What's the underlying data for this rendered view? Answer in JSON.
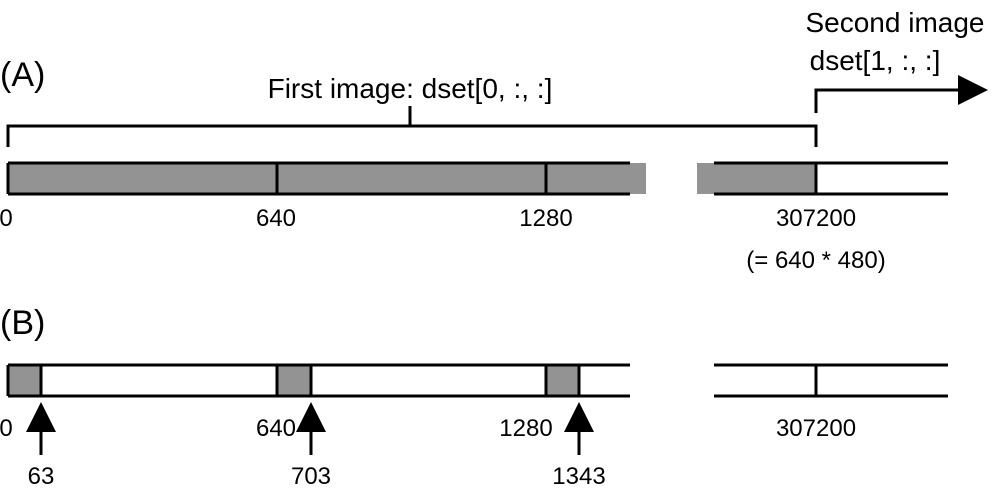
{
  "colors": {
    "fill": "#939393",
    "line": "#000000",
    "background": "#ffffff"
  },
  "panel_a": {
    "label": "(A)",
    "first_image_label": "First image: dset[0, :, :]",
    "second_image_label_line1": "Second image",
    "second_image_label_line2": "dset[1, :, :]",
    "ticks": {
      "t0": "0",
      "t640": "640",
      "t1280": "1280",
      "t307200": "307200"
    },
    "note": "(= 640 * 480)"
  },
  "panel_b": {
    "label": "(B)",
    "ticks": {
      "t0": "0",
      "t640": "640",
      "t1280": "1280",
      "t307200": "307200"
    },
    "arrows": {
      "a63": "63",
      "a703": "703",
      "a1343": "1343"
    }
  }
}
